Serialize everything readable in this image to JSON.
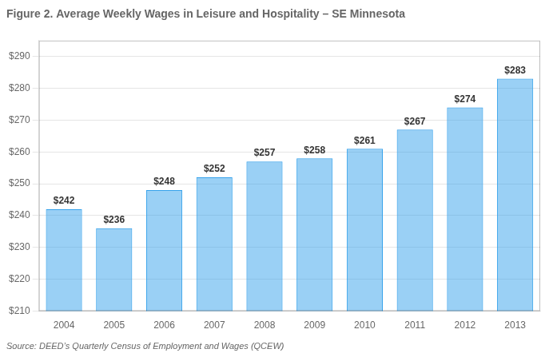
{
  "chart_data": {
    "type": "bar",
    "title": "Figure 2. Average Weekly Wages in Leisure and Hospitality – SE Minnesota",
    "annotations": [
      "Source: DEED’s Quarterly Census of Employment and Wages (QCEW)"
    ],
    "categories": [
      "2004",
      "2005",
      "2006",
      "2007",
      "2008",
      "2009",
      "2010",
      "2011",
      "2012",
      "2013"
    ],
    "values": [
      242,
      236,
      248,
      252,
      257,
      258,
      261,
      267,
      274,
      283
    ],
    "value_labels": [
      "$242",
      "$236",
      "$248",
      "$252",
      "$257",
      "$258",
      "$261",
      "$267",
      "$274",
      "$283"
    ],
    "data_labels": true,
    "ylim": [
      210,
      295
    ],
    "yticks": [
      {
        "value": 210,
        "label": "$210"
      },
      {
        "value": 220,
        "label": "$220"
      },
      {
        "value": 230,
        "label": "$230"
      },
      {
        "value": 240,
        "label": "$240"
      },
      {
        "value": 250,
        "label": "$250"
      },
      {
        "value": 260,
        "label": "$260"
      },
      {
        "value": 270,
        "label": "$270"
      },
      {
        "value": 280,
        "label": "$280"
      },
      {
        "value": 290,
        "label": "$290"
      }
    ],
    "grid": true
  }
}
